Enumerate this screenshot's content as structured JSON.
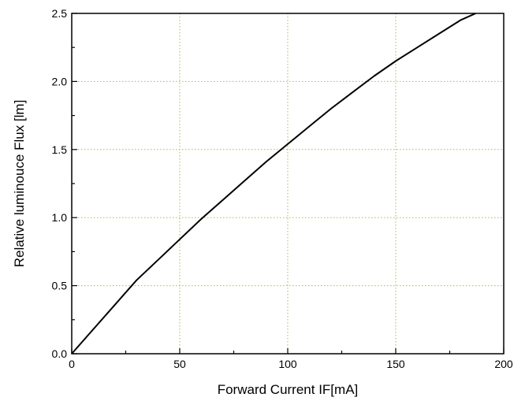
{
  "chart_data": {
    "type": "line",
    "title": "",
    "xlabel": "Forward Current IF[mA]",
    "ylabel": "Relative luminouce Flux [lm]",
    "xlim": [
      0,
      200
    ],
    "ylim": [
      0,
      2.5
    ],
    "x_ticks": [
      "0",
      "50",
      "100",
      "150",
      "200"
    ],
    "y_ticks": [
      "0.0",
      "0.5",
      "1.0",
      "1.5",
      "2.0",
      "2.5"
    ],
    "grid": true,
    "grid_color": "#b5b54a",
    "line_color": "#000000",
    "series": [
      {
        "x": [
          0,
          10,
          20,
          30,
          40,
          50,
          60,
          70,
          80,
          90,
          100,
          110,
          120,
          130,
          140,
          150,
          160,
          170,
          180,
          187
        ],
        "values": [
          0.0,
          0.18,
          0.36,
          0.54,
          0.69,
          0.84,
          0.99,
          1.13,
          1.27,
          1.41,
          1.54,
          1.67,
          1.8,
          1.92,
          2.04,
          2.15,
          2.25,
          2.35,
          2.45,
          2.5
        ]
      }
    ]
  }
}
